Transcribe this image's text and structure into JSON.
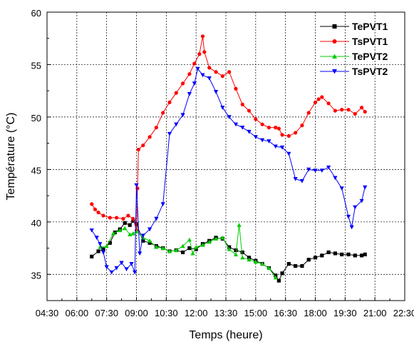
{
  "chart_data": {
    "type": "line",
    "title": "",
    "xlabel": "Temps (heure)",
    "ylabel": "Température (°C)",
    "xlim": [
      "04:30",
      "22:30"
    ],
    "ylim": [
      32.5,
      60
    ],
    "grid": true,
    "legend_position": "top-right",
    "x_ticks": [
      "04:30",
      "06:00",
      "07:30",
      "09:00",
      "10:30",
      "12:00",
      "13:30",
      "15:00",
      "16:30",
      "18:00",
      "19:30",
      "21:00",
      "22:30"
    ],
    "y_ticks": [
      35,
      40,
      45,
      50,
      55,
      60
    ],
    "series": [
      {
        "name": "TePVT1",
        "color": "#000000",
        "marker": "square",
        "points": [
          [
            "06:45",
            36.7
          ],
          [
            "07:05",
            37.2
          ],
          [
            "07:20",
            37.4
          ],
          [
            "07:40",
            38.0
          ],
          [
            "07:55",
            39.0
          ],
          [
            "08:10",
            39.3
          ],
          [
            "08:25",
            39.9
          ],
          [
            "08:40",
            39.7
          ],
          [
            "08:50",
            40.1
          ],
          [
            "09:00",
            39.8
          ],
          [
            "09:20",
            38.2
          ],
          [
            "09:40",
            38.0
          ],
          [
            "10:00",
            37.7
          ],
          [
            "10:20",
            37.5
          ],
          [
            "10:40",
            37.2
          ],
          [
            "11:00",
            37.3
          ],
          [
            "11:20",
            37.1
          ],
          [
            "11:40",
            37.5
          ],
          [
            "12:00",
            37.4
          ],
          [
            "12:20",
            37.9
          ],
          [
            "12:40",
            38.2
          ],
          [
            "13:00",
            38.5
          ],
          [
            "13:20",
            38.4
          ],
          [
            "13:40",
            37.6
          ],
          [
            "14:00",
            37.3
          ],
          [
            "14:20",
            37.1
          ],
          [
            "14:40",
            36.6
          ],
          [
            "15:00",
            36.3
          ],
          [
            "15:20",
            36.0
          ],
          [
            "15:40",
            35.6
          ],
          [
            "16:00",
            34.9
          ],
          [
            "16:10",
            34.4
          ],
          [
            "16:20",
            35.1
          ],
          [
            "16:40",
            36.0
          ],
          [
            "17:00",
            35.8
          ],
          [
            "17:20",
            35.8
          ],
          [
            "17:40",
            36.4
          ],
          [
            "18:00",
            36.6
          ],
          [
            "18:20",
            36.8
          ],
          [
            "18:40",
            37.1
          ],
          [
            "19:00",
            37.0
          ],
          [
            "19:20",
            36.9
          ],
          [
            "19:40",
            36.9
          ],
          [
            "20:00",
            36.8
          ],
          [
            "20:20",
            36.8
          ],
          [
            "20:30",
            36.9
          ]
        ]
      },
      {
        "name": "TsPVT1",
        "color": "#ff0000",
        "marker": "circle",
        "points": [
          [
            "06:45",
            41.7
          ],
          [
            "06:55",
            41.2
          ],
          [
            "07:05",
            40.9
          ],
          [
            "07:20",
            40.6
          ],
          [
            "07:40",
            40.4
          ],
          [
            "08:00",
            40.4
          ],
          [
            "08:20",
            40.3
          ],
          [
            "08:35",
            40.6
          ],
          [
            "08:50",
            40.3
          ],
          [
            "09:00",
            39.2
          ],
          [
            "09:03",
            43.2
          ],
          [
            "09:06",
            46.9
          ],
          [
            "09:20",
            47.3
          ],
          [
            "09:40",
            48.1
          ],
          [
            "10:00",
            49.0
          ],
          [
            "10:20",
            50.4
          ],
          [
            "10:40",
            51.4
          ],
          [
            "11:00",
            52.3
          ],
          [
            "11:20",
            53.2
          ],
          [
            "11:40",
            54.1
          ],
          [
            "11:55",
            55.1
          ],
          [
            "12:10",
            56.0
          ],
          [
            "12:20",
            57.7
          ],
          [
            "12:25",
            56.2
          ],
          [
            "12:40",
            54.7
          ],
          [
            "13:00",
            54.3
          ],
          [
            "13:20",
            53.9
          ],
          [
            "13:40",
            54.3
          ],
          [
            "14:00",
            52.7
          ],
          [
            "14:20",
            51.2
          ],
          [
            "14:40",
            50.6
          ],
          [
            "15:00",
            49.8
          ],
          [
            "15:20",
            49.3
          ],
          [
            "15:40",
            49.0
          ],
          [
            "16:00",
            49.0
          ],
          [
            "16:10",
            48.9
          ],
          [
            "16:20",
            48.3
          ],
          [
            "16:40",
            48.2
          ],
          [
            "17:00",
            48.5
          ],
          [
            "17:20",
            49.2
          ],
          [
            "17:40",
            50.4
          ],
          [
            "18:00",
            51.4
          ],
          [
            "18:10",
            51.7
          ],
          [
            "18:20",
            51.9
          ],
          [
            "18:40",
            51.3
          ],
          [
            "19:00",
            50.6
          ],
          [
            "19:20",
            50.7
          ],
          [
            "19:40",
            50.7
          ],
          [
            "20:00",
            50.3
          ],
          [
            "20:20",
            50.9
          ],
          [
            "20:30",
            50.5
          ]
        ]
      },
      {
        "name": "TePVT2",
        "color": "#00cc00",
        "marker": "triangle-up",
        "points": [
          [
            "07:10",
            37.6
          ],
          [
            "07:30",
            37.7
          ],
          [
            "07:50",
            38.9
          ],
          [
            "08:10",
            39.2
          ],
          [
            "08:25",
            39.4
          ],
          [
            "08:40",
            38.8
          ],
          [
            "08:50",
            38.9
          ],
          [
            "09:00",
            39.1
          ],
          [
            "09:20",
            38.5
          ],
          [
            "09:40",
            38.2
          ],
          [
            "10:00",
            37.6
          ],
          [
            "10:20",
            37.5
          ],
          [
            "10:40",
            37.2
          ],
          [
            "11:00",
            37.3
          ],
          [
            "11:20",
            37.7
          ],
          [
            "11:40",
            38.3
          ],
          [
            "11:50",
            37.0
          ],
          [
            "12:00",
            37.6
          ],
          [
            "12:20",
            37.8
          ],
          [
            "12:40",
            38.1
          ],
          [
            "13:00",
            38.4
          ],
          [
            "13:20",
            38.5
          ],
          [
            "13:40",
            37.4
          ],
          [
            "14:00",
            36.9
          ],
          [
            "14:10",
            39.7
          ],
          [
            "14:20",
            36.6
          ],
          [
            "14:40",
            36.4
          ],
          [
            "15:00",
            36.2
          ],
          [
            "15:20",
            36.0
          ],
          [
            "15:40",
            35.6
          ],
          [
            "16:00",
            34.7
          ]
        ]
      },
      {
        "name": "TsPVT2",
        "color": "#0000ff",
        "marker": "triangle-down",
        "points": [
          [
            "06:45",
            39.2
          ],
          [
            "07:00",
            38.5
          ],
          [
            "07:10",
            37.9
          ],
          [
            "07:20",
            37.1
          ],
          [
            "07:30",
            35.7
          ],
          [
            "07:45",
            35.2
          ],
          [
            "08:00",
            35.6
          ],
          [
            "08:15",
            36.1
          ],
          [
            "08:30",
            35.5
          ],
          [
            "08:45",
            36.0
          ],
          [
            "08:55",
            35.2
          ],
          [
            "09:00",
            43.5
          ],
          [
            "09:10",
            37.0
          ],
          [
            "09:20",
            38.7
          ],
          [
            "09:40",
            39.3
          ],
          [
            "10:00",
            40.3
          ],
          [
            "10:20",
            41.7
          ],
          [
            "10:40",
            48.4
          ],
          [
            "11:00",
            49.3
          ],
          [
            "11:20",
            50.2
          ],
          [
            "11:40",
            52.2
          ],
          [
            "11:55",
            53.2
          ],
          [
            "12:05",
            54.6
          ],
          [
            "12:20",
            54.0
          ],
          [
            "12:40",
            53.7
          ],
          [
            "13:00",
            52.4
          ],
          [
            "13:20",
            50.9
          ],
          [
            "13:40",
            50.0
          ],
          [
            "14:00",
            49.3
          ],
          [
            "14:20",
            49.0
          ],
          [
            "14:40",
            48.6
          ],
          [
            "15:00",
            48.1
          ],
          [
            "15:20",
            47.8
          ],
          [
            "15:40",
            47.7
          ],
          [
            "16:00",
            47.2
          ],
          [
            "16:20",
            47.1
          ],
          [
            "16:40",
            46.5
          ],
          [
            "17:00",
            44.1
          ],
          [
            "17:20",
            43.9
          ],
          [
            "17:40",
            45.0
          ],
          [
            "18:00",
            44.9
          ],
          [
            "18:20",
            44.9
          ],
          [
            "18:40",
            45.2
          ],
          [
            "19:00",
            44.2
          ],
          [
            "19:20",
            43.2
          ],
          [
            "19:40",
            40.5
          ],
          [
            "19:50",
            39.5
          ],
          [
            "20:00",
            41.4
          ],
          [
            "20:20",
            42.0
          ],
          [
            "20:30",
            43.3
          ]
        ]
      }
    ]
  }
}
